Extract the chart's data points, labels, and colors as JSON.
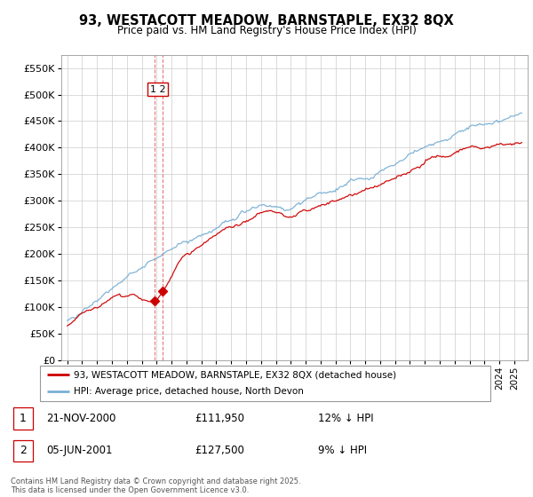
{
  "title_line1": "93, WESTACOTT MEADOW, BARNSTAPLE, EX32 8QX",
  "title_line2": "Price paid vs. HM Land Registry's House Price Index (HPI)",
  "legend_label_red": "93, WESTACOTT MEADOW, BARNSTAPLE, EX32 8QX (detached house)",
  "legend_label_blue": "HPI: Average price, detached house, North Devon",
  "red_color": "#cc0000",
  "blue_color": "#7ab0d4",
  "dashed_color": "#e06060",
  "footer": "Contains HM Land Registry data © Crown copyright and database right 2025.\nThis data is licensed under the Open Government Licence v3.0.",
  "transaction1_num": "1",
  "transaction1_date": "21-NOV-2000",
  "transaction1_price": "£111,950",
  "transaction1_hpi": "12% ↓ HPI",
  "transaction2_num": "2",
  "transaction2_date": "05-JUN-2001",
  "transaction2_price": "£127,500",
  "transaction2_hpi": "9% ↓ HPI",
  "ylim": [
    0,
    575000
  ],
  "yticks": [
    0,
    50000,
    100000,
    150000,
    200000,
    250000,
    300000,
    350000,
    400000,
    450000,
    500000,
    550000
  ],
  "xstart_year": 1995,
  "xend_year": 2025,
  "t1_year": 2000.88,
  "t2_year": 2001.42,
  "t1_price": 111950,
  "t2_price": 127500
}
